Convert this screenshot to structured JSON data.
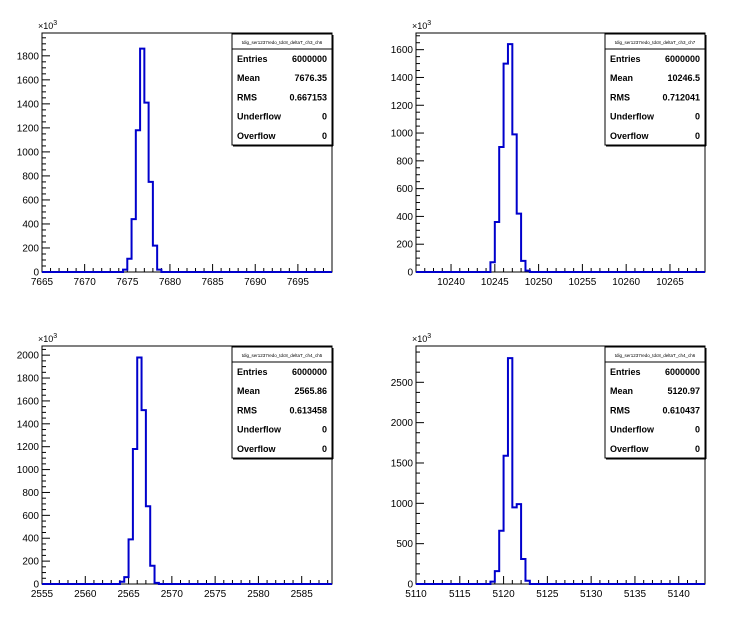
{
  "colors": {
    "histogram_line": "#0000cc",
    "frame": "#000000",
    "background": "#ffffff"
  },
  "chart_data": [
    {
      "type": "histogram",
      "title": "",
      "xlabel": "",
      "ylabel": "",
      "y_exponent": "10^3",
      "xlim": [
        7665,
        7699
      ],
      "ylim": [
        0,
        1990
      ],
      "xticks": [
        7665,
        7670,
        7675,
        7680,
        7685,
        7690,
        7695
      ],
      "yticks": [
        0,
        200,
        400,
        600,
        800,
        1000,
        1200,
        1400,
        1600,
        1800
      ],
      "x_labels": [
        "7665",
        "7670",
        "7675",
        "7680",
        "7685",
        "7690",
        "7695"
      ],
      "y_labels": [
        "0",
        "200",
        "400",
        "600",
        "800",
        "1000",
        "1200",
        "1400",
        "1600",
        "1800"
      ],
      "bin_width": 0.5,
      "bins": [
        {
          "x": 7674.5,
          "y": 20
        },
        {
          "x": 7675.0,
          "y": 110
        },
        {
          "x": 7675.5,
          "y": 440
        },
        {
          "x": 7676.0,
          "y": 1180
        },
        {
          "x": 7676.5,
          "y": 1860
        },
        {
          "x": 7677.0,
          "y": 1410
        },
        {
          "x": 7677.5,
          "y": 750
        },
        {
          "x": 7678.0,
          "y": 220
        },
        {
          "x": 7678.5,
          "y": 20
        }
      ],
      "stats": {
        "name": "tdig_ser1237redo_tdc8_deltaT_ch3_ch6",
        "rows": [
          {
            "label": "Entries",
            "value": "6000000"
          },
          {
            "label": "Mean",
            "value": "7676.35"
          },
          {
            "label": "RMS",
            "value": "0.667153"
          },
          {
            "label": "Underflow",
            "value": "0"
          },
          {
            "label": "Overflow",
            "value": "0"
          }
        ]
      }
    },
    {
      "type": "histogram",
      "title": "",
      "xlabel": "",
      "ylabel": "",
      "y_exponent": "10^3",
      "xlim": [
        10236,
        10269
      ],
      "ylim": [
        0,
        1720
      ],
      "xticks": [
        10240,
        10245,
        10250,
        10255,
        10260,
        10265
      ],
      "yticks": [
        0,
        200,
        400,
        600,
        800,
        1000,
        1200,
        1400,
        1600
      ],
      "x_labels": [
        "10240",
        "10245",
        "10250",
        "10255",
        "10260",
        "10265"
      ],
      "y_labels": [
        "0",
        "200",
        "400",
        "600",
        "800",
        "1000",
        "1200",
        "1400",
        "1600"
      ],
      "bin_width": 0.5,
      "bins": [
        {
          "x": 10244.5,
          "y": 70
        },
        {
          "x": 10245.0,
          "y": 360
        },
        {
          "x": 10245.5,
          "y": 900
        },
        {
          "x": 10246.0,
          "y": 1500
        },
        {
          "x": 10246.5,
          "y": 1640
        },
        {
          "x": 10247.0,
          "y": 990
        },
        {
          "x": 10247.5,
          "y": 420
        },
        {
          "x": 10248.0,
          "y": 80
        },
        {
          "x": 10248.5,
          "y": 10
        }
      ],
      "stats": {
        "name": "tdig_ser1237redo_tdc8_deltaT_ch3_ch7",
        "rows": [
          {
            "label": "Entries",
            "value": "6000000"
          },
          {
            "label": "Mean",
            "value": "10246.5"
          },
          {
            "label": "RMS",
            "value": "0.712041"
          },
          {
            "label": "Underflow",
            "value": "0"
          },
          {
            "label": "Overflow",
            "value": "0"
          }
        ]
      }
    },
    {
      "type": "histogram",
      "title": "",
      "xlabel": "",
      "ylabel": "",
      "y_exponent": "10^3",
      "xlim": [
        2555,
        2588.5
      ],
      "ylim": [
        0,
        2080
      ],
      "xticks": [
        2555,
        2560,
        2565,
        2570,
        2575,
        2580,
        2585
      ],
      "yticks": [
        0,
        200,
        400,
        600,
        800,
        1000,
        1200,
        1400,
        1600,
        1800,
        2000
      ],
      "x_labels": [
        "2555",
        "2560",
        "2565",
        "2570",
        "2575",
        "2580",
        "2585"
      ],
      "y_labels": [
        "0",
        "200",
        "400",
        "600",
        "800",
        "1000",
        "1200",
        "1400",
        "1600",
        "1800",
        "2000"
      ],
      "bin_width": 0.5,
      "bins": [
        {
          "x": 2564.0,
          "y": 20
        },
        {
          "x": 2564.5,
          "y": 60
        },
        {
          "x": 2565.0,
          "y": 390
        },
        {
          "x": 2565.5,
          "y": 1180
        },
        {
          "x": 2566.0,
          "y": 1980
        },
        {
          "x": 2566.5,
          "y": 1520
        },
        {
          "x": 2567.0,
          "y": 680
        },
        {
          "x": 2567.5,
          "y": 160
        },
        {
          "x": 2568.0,
          "y": 10
        }
      ],
      "stats": {
        "name": "tdig_ser1237redo_tdc8_deltaT_ch4_ch5",
        "rows": [
          {
            "label": "Entries",
            "value": "6000000"
          },
          {
            "label": "Mean",
            "value": "2565.86"
          },
          {
            "label": "RMS",
            "value": "0.613458"
          },
          {
            "label": "Underflow",
            "value": "0"
          },
          {
            "label": "Overflow",
            "value": "0"
          }
        ]
      }
    },
    {
      "type": "histogram",
      "title": "",
      "xlabel": "",
      "ylabel": "",
      "y_exponent": "10^3",
      "xlim": [
        5110,
        5143
      ],
      "ylim": [
        0,
        2950
      ],
      "xticks": [
        5110,
        5115,
        5120,
        5125,
        5130,
        5135,
        5140
      ],
      "yticks": [
        0,
        500,
        1000,
        1500,
        2000,
        2500
      ],
      "x_labels": [
        "5110",
        "5115",
        "5120",
        "5125",
        "5130",
        "5135",
        "5140"
      ],
      "y_labels": [
        "0",
        "500",
        "1000",
        "1500",
        "2000",
        "2500"
      ],
      "bin_width": 0.5,
      "bins": [
        {
          "x": 5118.5,
          "y": 30
        },
        {
          "x": 5119.0,
          "y": 160
        },
        {
          "x": 5119.5,
          "y": 660
        },
        {
          "x": 5120.0,
          "y": 1590
        },
        {
          "x": 5120.5,
          "y": 2800
        },
        {
          "x": 5121.0,
          "y": 950
        },
        {
          "x": 5121.5,
          "y": 990
        },
        {
          "x": 5122.0,
          "y": 310
        },
        {
          "x": 5122.5,
          "y": 40
        }
      ],
      "stats": {
        "name": "tdig_ser1237redo_tdc8_deltaT_ch4_ch6",
        "rows": [
          {
            "label": "Entries",
            "value": "6000000"
          },
          {
            "label": "Mean",
            "value": "5120.97"
          },
          {
            "label": "RMS",
            "value": "0.610437"
          },
          {
            "label": "Underflow",
            "value": "0"
          },
          {
            "label": "Overflow",
            "value": "0"
          }
        ]
      }
    }
  ]
}
